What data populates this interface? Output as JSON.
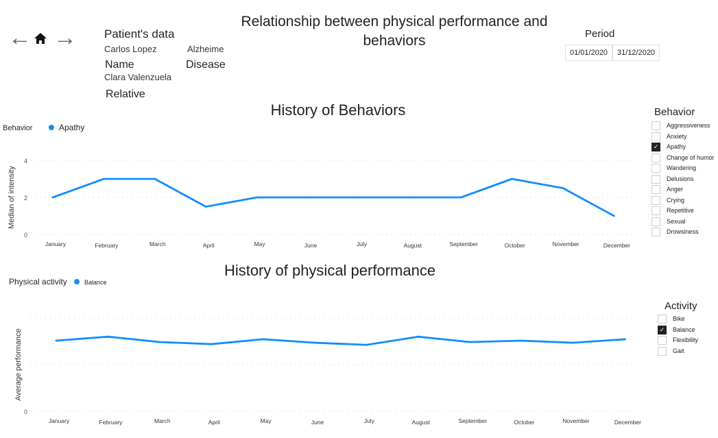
{
  "header": {
    "title": "Relationship between physical performance and behaviors",
    "patient_heading": "Patient's data",
    "name_value": "Carlos Lopez",
    "name_label": "Name",
    "disease_value": "Alzheime",
    "disease_label": "Disease",
    "relative_value": "Clara Valenzuela",
    "relative_label": "Relative",
    "period_label": "Period",
    "date_from": "01/01/2020",
    "date_to": "31/12/2020"
  },
  "nav": {
    "back": "←",
    "home": "⌂",
    "forward": "→"
  },
  "colors": {
    "line": "#118DFF"
  },
  "behavior_filter": {
    "title": "Behavior",
    "items": [
      {
        "label": "Aggressiveness",
        "checked": false
      },
      {
        "label": "Anxiety",
        "checked": false
      },
      {
        "label": "Apathy",
        "checked": true
      },
      {
        "label": "Change of humor",
        "checked": false
      },
      {
        "label": "Wandering",
        "checked": false
      },
      {
        "label": "Delusions",
        "checked": false
      },
      {
        "label": "Anger",
        "checked": false
      },
      {
        "label": "Crying",
        "checked": false
      },
      {
        "label": "Repetitive",
        "checked": false
      },
      {
        "label": "Sexual",
        "checked": false
      },
      {
        "label": "Drowsiness",
        "checked": false
      }
    ]
  },
  "activity_filter": {
    "title": "Activity",
    "items": [
      {
        "label": "Bike",
        "checked": false
      },
      {
        "label": "Balance",
        "checked": true
      },
      {
        "label": "Flexibility",
        "checked": false
      },
      {
        "label": "Gait",
        "checked": false
      }
    ]
  },
  "chart_data": [
    {
      "type": "line",
      "title": "History of Behaviors",
      "legend_title": "Behavior",
      "series": [
        {
          "name": "Apathy",
          "values": [
            2,
            3,
            3,
            1.5,
            2,
            2,
            2,
            2,
            2,
            3,
            2.5,
            1
          ]
        }
      ],
      "categories": [
        "January",
        "February",
        "March",
        "April",
        "May",
        "June",
        "July",
        "August",
        "September",
        "October",
        "November",
        "December"
      ],
      "ylabel": "Median of intensity",
      "ylim": [
        0,
        4
      ],
      "yticks": [
        "0",
        "2",
        "4"
      ],
      "grid": true,
      "legend": "top-left"
    },
    {
      "type": "line",
      "title": "History of physical performance",
      "legend_title": "Physical activity",
      "series": [
        {
          "name": "Balance",
          "values": [
            3.03,
            3.2,
            2.97,
            2.88,
            3.09,
            2.94,
            2.85,
            3.2,
            2.97,
            3.03,
            2.94,
            3.09
          ]
        }
      ],
      "categories": [
        "January",
        "February",
        "March",
        "April",
        "May",
        "June",
        "July",
        "August",
        "September",
        "October",
        "November",
        "December"
      ],
      "ylabel": "Average performance",
      "ylim": [
        0,
        4
      ],
      "yticks": [
        "0"
      ],
      "grid": true,
      "legend": "top-left"
    }
  ]
}
